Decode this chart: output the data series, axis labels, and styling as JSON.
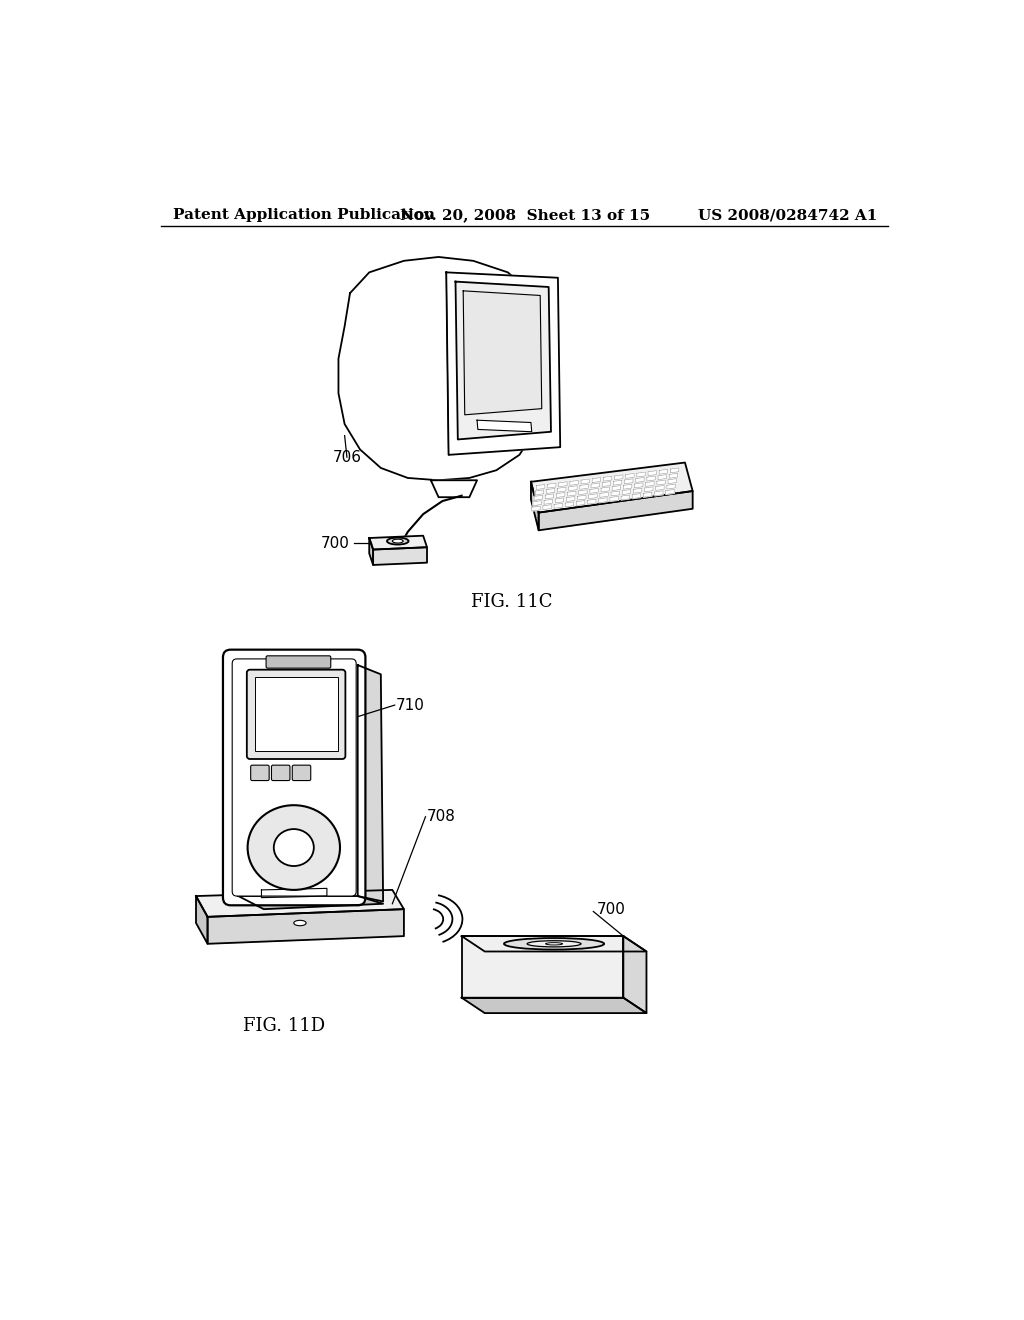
{
  "background_color": "#ffffff",
  "header_left": "Patent Application Publication",
  "header_middle": "Nov. 20, 2008  Sheet 13 of 15",
  "header_right": "US 2008/0284742 A1",
  "fig11c_label": "FIG. 11C",
  "fig11d_label": "FIG. 11D",
  "label_706": "706",
  "label_700_top": "700",
  "label_710": "710",
  "label_708": "708",
  "label_700_bottom": "700",
  "line_color": "#000000",
  "text_color": "#000000",
  "header_fontsize": 11,
  "fig_label_fontsize": 13,
  "annotation_fontsize": 11
}
